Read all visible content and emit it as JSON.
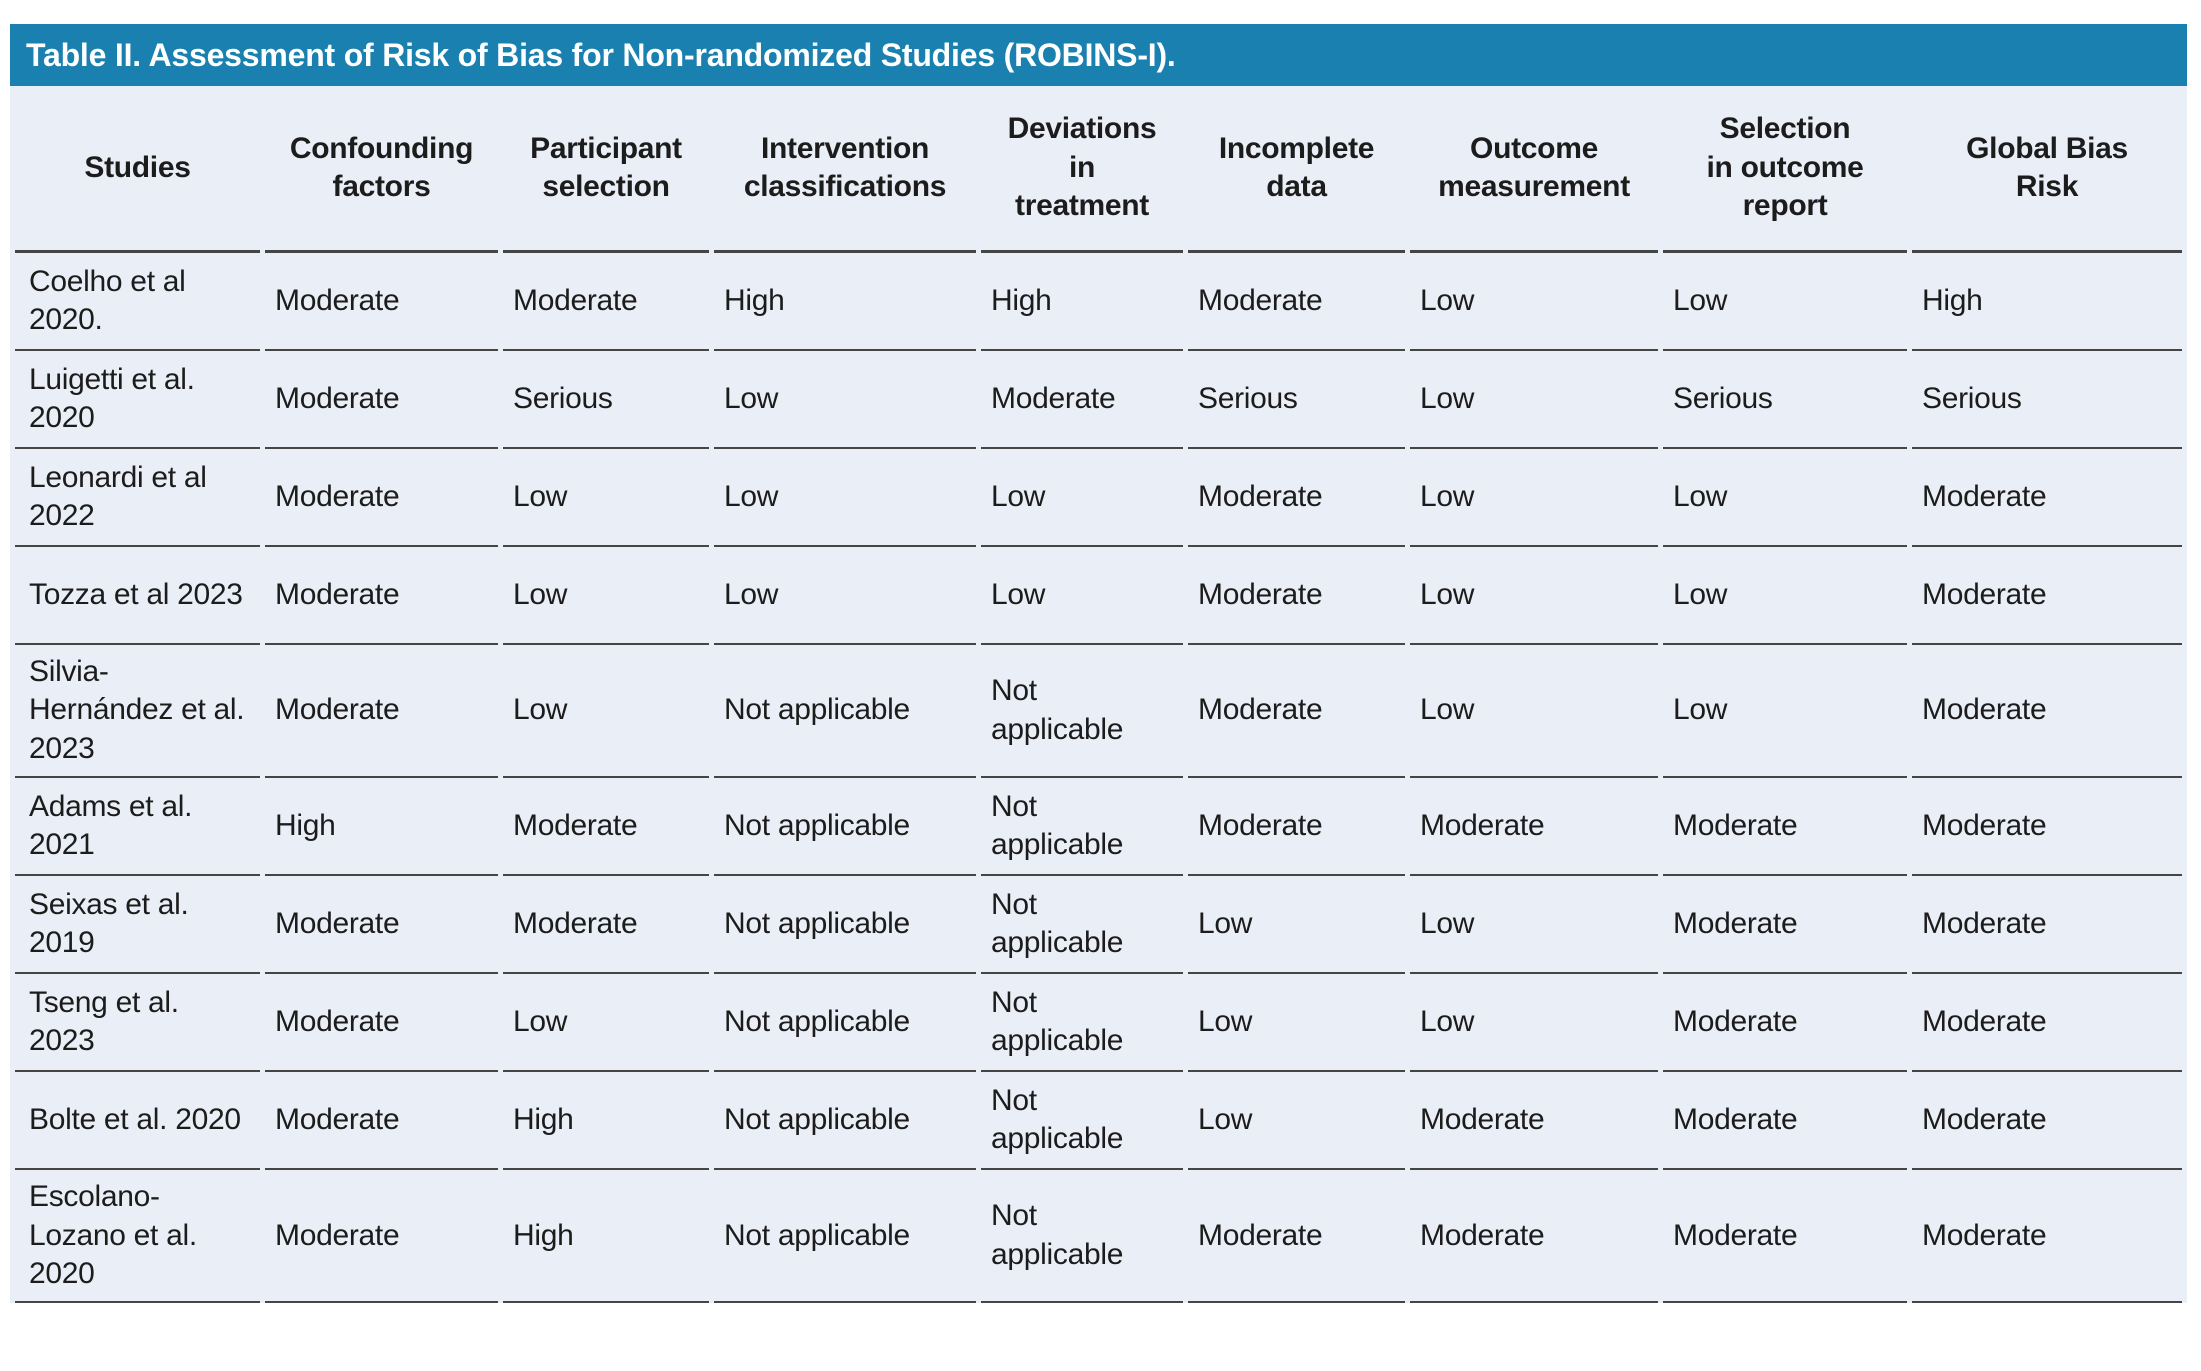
{
  "title": "Table II. Assessment of Risk of Bias for Non-randomized Studies (ROBINS-I).",
  "colors": {
    "title_bar_bg": "#1a80af",
    "title_text": "#ffffff",
    "table_bg": "#eaeef6",
    "row_border": "#454545",
    "body_text": "#1c1c1c"
  },
  "table": {
    "columns": [
      "Studies",
      "Confounding\nfactors",
      "Participant\nselection",
      "Intervention\nclassifications",
      "Deviations\nin\ntreatment",
      "Incomplete\ndata",
      "Outcome\nmeasurement",
      "Selection\nin outcome\nreport",
      "Global Bias\nRisk"
    ],
    "rows": [
      {
        "study": "Coelho et al 2020.",
        "values": [
          "Moderate",
          "Moderate",
          "High",
          "High",
          "Moderate",
          "Low",
          "Low",
          "High"
        ]
      },
      {
        "study": "Luigetti et al. 2020",
        "values": [
          "Moderate",
          "Serious",
          "Low",
          "Moderate",
          "Serious",
          "Low",
          "Serious",
          "Serious"
        ]
      },
      {
        "study": "Leonardi et al 2022",
        "values": [
          "Moderate",
          "Low",
          "Low",
          "Low",
          "Moderate",
          "Low",
          "Low",
          "Moderate"
        ]
      },
      {
        "study": "Tozza et al 2023",
        "values": [
          "Moderate",
          "Low",
          "Low",
          "Low",
          "Moderate",
          "Low",
          "Low",
          "Moderate"
        ]
      },
      {
        "study": "Silvia-Hernández et al. 2023",
        "values": [
          "Moderate",
          "Low",
          "Not applicable",
          "Not applicable",
          "Moderate",
          "Low",
          "Low",
          "Moderate"
        ]
      },
      {
        "study": "Adams et al. 2021",
        "values": [
          "High",
          "Moderate",
          "Not applicable",
          "Not applicable",
          "Moderate",
          "Moderate",
          "Moderate",
          "Moderate"
        ]
      },
      {
        "study": "Seixas et al. 2019",
        "values": [
          "Moderate",
          "Moderate",
          "Not applicable",
          "Not applicable",
          "Low",
          "Low",
          "Moderate",
          "Moderate"
        ]
      },
      {
        "study": "Tseng et al. 2023",
        "values": [
          "Moderate",
          "Low",
          "Not applicable",
          "Not applicable",
          "Low",
          "Low",
          "Moderate",
          "Moderate"
        ]
      },
      {
        "study": "Bolte et al. 2020",
        "values": [
          "Moderate",
          "High",
          "Not applicable",
          "Not applicable",
          "Low",
          "Moderate",
          "Moderate",
          "Moderate"
        ]
      },
      {
        "study": "Escolano-Lozano et al. 2020",
        "values": [
          "Moderate",
          "High",
          "Not applicable",
          "Not applicable",
          "Moderate",
          "Moderate",
          "Moderate",
          "Moderate"
        ]
      }
    ]
  }
}
